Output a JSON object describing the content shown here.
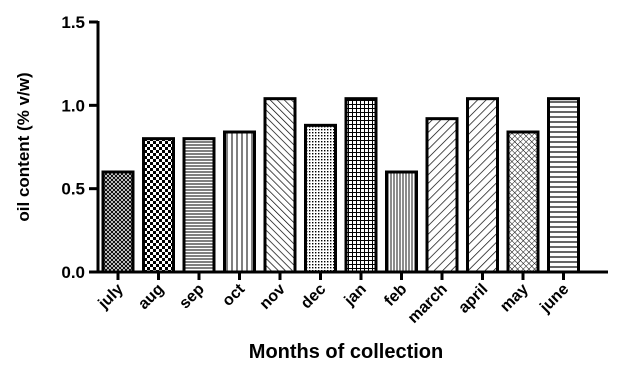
{
  "chart_data": {
    "type": "bar",
    "title": "",
    "xlabel": "Months of collection",
    "ylabel": "oil content (% v/w)",
    "ylim": [
      0,
      1.5
    ],
    "yticks": [
      "0.0",
      "0.5",
      "1.0",
      "1.5"
    ],
    "grid": false,
    "categories": [
      "july",
      "aug",
      "sep",
      "oct",
      "nov",
      "dec",
      "jan",
      "feb",
      "march",
      "april",
      "may",
      "june"
    ],
    "values": [
      0.6,
      0.8,
      0.8,
      0.84,
      1.04,
      0.88,
      1.04,
      0.6,
      0.92,
      1.04,
      0.84,
      1.04
    ],
    "patterns": [
      "crosshatch-fine",
      "checker",
      "horizontal-fine",
      "vertical",
      "diagonal-left",
      "dots",
      "grid-fine",
      "vertical-fine",
      "diagonal-right",
      "diagonal-right",
      "crosshatch-diagonal",
      "horizontal"
    ],
    "colors": {
      "bar_stroke": "#000000",
      "pattern": "#000000",
      "background": "#ffffff"
    }
  }
}
